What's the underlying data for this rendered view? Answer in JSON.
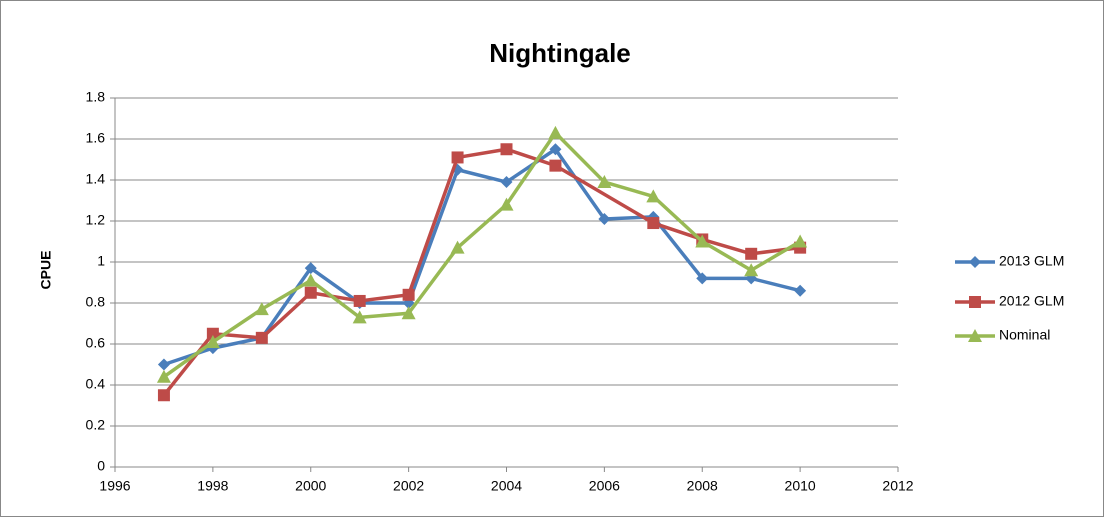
{
  "chart_data": {
    "type": "line",
    "title": "Nightingale",
    "y_label": "CPUE",
    "xlim": [
      1996,
      2012
    ],
    "xticks": [
      1996,
      1998,
      2000,
      2002,
      2004,
      2006,
      2008,
      2010,
      2012
    ],
    "ylim": [
      0,
      1.8
    ],
    "yticks": [
      0,
      0.2,
      0.4,
      0.6,
      0.8,
      1,
      1.2,
      1.4,
      1.6,
      1.8
    ],
    "grid": true,
    "legend": "right",
    "series": [
      {
        "name": "2013 GLM",
        "color": "#4a7ebb",
        "marker": "diamond",
        "x": [
          1997,
          1998,
          1999,
          2000,
          2001,
          2002,
          2003,
          2004,
          2005,
          2006,
          2007,
          2008,
          2009,
          2010
        ],
        "values": [
          0.5,
          0.58,
          0.63,
          0.97,
          0.8,
          0.8,
          1.45,
          1.39,
          1.55,
          1.21,
          1.22,
          0.92,
          0.92,
          0.86
        ]
      },
      {
        "name": "2012 GLM",
        "color": "#be4b48",
        "marker": "square",
        "x": [
          1997,
          1998,
          1999,
          2000,
          2001,
          2002,
          2003,
          2004,
          2005,
          2007,
          2008,
          2009,
          2010
        ],
        "values": [
          0.35,
          0.65,
          0.63,
          0.85,
          0.81,
          0.84,
          1.51,
          1.55,
          1.47,
          1.19,
          1.11,
          1.04,
          1.07
        ]
      },
      {
        "name": "Nominal",
        "color": "#98b954",
        "marker": "triangle",
        "x": [
          1997,
          1998,
          1999,
          2000,
          2001,
          2002,
          2003,
          2004,
          2005,
          2006,
          2007,
          2008,
          2009,
          2010
        ],
        "values": [
          0.44,
          0.61,
          0.77,
          0.91,
          0.73,
          0.75,
          1.07,
          1.28,
          1.63,
          1.39,
          1.32,
          1.1,
          0.96,
          1.1
        ]
      }
    ]
  }
}
